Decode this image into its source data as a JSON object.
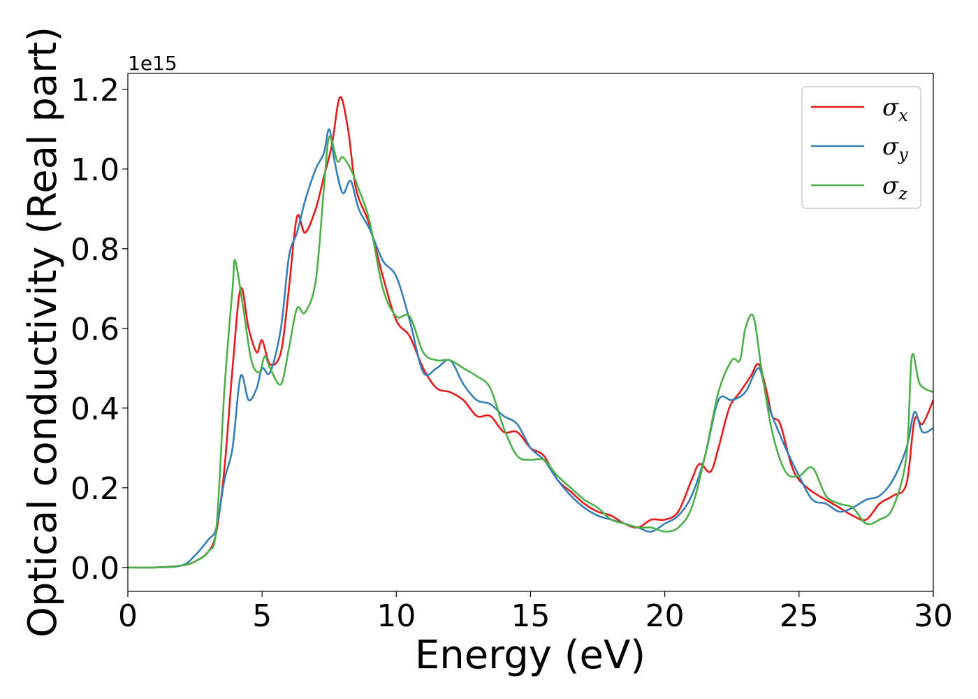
{
  "chart_data": {
    "type": "line",
    "xlabel": "Energy (eV)",
    "ylabel": "Optical conductivity (Real part)",
    "y_offset_label": "1e15",
    "xlim": [
      0,
      30
    ],
    "ylim": [
      -0.06,
      1.24
    ],
    "x_ticks": [
      "0",
      "5",
      "10",
      "15",
      "20",
      "25",
      "30"
    ],
    "y_ticks": [
      "0.0",
      "0.2",
      "0.4",
      "0.6",
      "0.8",
      "1.0",
      "1.2"
    ],
    "grid": false,
    "legend_position": "top-right",
    "series": [
      {
        "name": "σx",
        "symbol": "σ",
        "subscript": "x",
        "color": "#e41a1c",
        "points": [
          [
            0,
            0
          ],
          [
            1,
            0
          ],
          [
            2,
            0.005
          ],
          [
            2.5,
            0.015
          ],
          [
            3,
            0.04
          ],
          [
            3.3,
            0.09
          ],
          [
            3.6,
            0.25
          ],
          [
            3.9,
            0.5
          ],
          [
            4.2,
            0.7
          ],
          [
            4.5,
            0.6
          ],
          [
            4.8,
            0.54
          ],
          [
            5.0,
            0.57
          ],
          [
            5.3,
            0.51
          ],
          [
            5.7,
            0.54
          ],
          [
            6.0,
            0.7
          ],
          [
            6.3,
            0.88
          ],
          [
            6.6,
            0.84
          ],
          [
            7.0,
            0.9
          ],
          [
            7.3,
            0.98
          ],
          [
            7.6,
            1.06
          ],
          [
            7.9,
            1.18
          ],
          [
            8.2,
            1.1
          ],
          [
            8.5,
            0.95
          ],
          [
            9.0,
            0.86
          ],
          [
            9.5,
            0.73
          ],
          [
            10.0,
            0.62
          ],
          [
            10.5,
            0.58
          ],
          [
            11.0,
            0.5
          ],
          [
            11.5,
            0.45
          ],
          [
            12.0,
            0.44
          ],
          [
            12.5,
            0.42
          ],
          [
            13.0,
            0.38
          ],
          [
            13.5,
            0.38
          ],
          [
            14.0,
            0.34
          ],
          [
            14.5,
            0.34
          ],
          [
            15.0,
            0.3
          ],
          [
            15.5,
            0.28
          ],
          [
            16.0,
            0.22
          ],
          [
            16.5,
            0.19
          ],
          [
            17.0,
            0.16
          ],
          [
            17.5,
            0.14
          ],
          [
            18.0,
            0.13
          ],
          [
            18.5,
            0.11
          ],
          [
            19.0,
            0.1
          ],
          [
            19.5,
            0.12
          ],
          [
            20.0,
            0.12
          ],
          [
            20.5,
            0.14
          ],
          [
            21.0,
            0.22
          ],
          [
            21.3,
            0.26
          ],
          [
            21.7,
            0.24
          ],
          [
            22.0,
            0.3
          ],
          [
            22.4,
            0.4
          ],
          [
            22.8,
            0.44
          ],
          [
            23.2,
            0.48
          ],
          [
            23.5,
            0.51
          ],
          [
            23.8,
            0.44
          ],
          [
            24.0,
            0.38
          ],
          [
            24.3,
            0.36
          ],
          [
            24.7,
            0.26
          ],
          [
            25.0,
            0.22
          ],
          [
            25.5,
            0.19
          ],
          [
            26.0,
            0.17
          ],
          [
            26.5,
            0.15
          ],
          [
            27.0,
            0.13
          ],
          [
            27.5,
            0.12
          ],
          [
            28.0,
            0.16
          ],
          [
            28.5,
            0.18
          ],
          [
            29.0,
            0.21
          ],
          [
            29.3,
            0.37
          ],
          [
            29.6,
            0.36
          ],
          [
            30.0,
            0.42
          ]
        ]
      },
      {
        "name": "σy",
        "symbol": "σ",
        "subscript": "y",
        "color": "#377eb8",
        "points": [
          [
            0,
            0
          ],
          [
            1,
            0
          ],
          [
            2,
            0.005
          ],
          [
            2.5,
            0.03
          ],
          [
            3,
            0.07
          ],
          [
            3.3,
            0.1
          ],
          [
            3.6,
            0.22
          ],
          [
            3.9,
            0.3
          ],
          [
            4.2,
            0.48
          ],
          [
            4.5,
            0.42
          ],
          [
            4.8,
            0.45
          ],
          [
            5.0,
            0.5
          ],
          [
            5.3,
            0.49
          ],
          [
            5.7,
            0.6
          ],
          [
            6.0,
            0.78
          ],
          [
            6.3,
            0.84
          ],
          [
            6.6,
            0.92
          ],
          [
            7.0,
            1.0
          ],
          [
            7.3,
            1.04
          ],
          [
            7.5,
            1.1
          ],
          [
            7.7,
            1.02
          ],
          [
            8.0,
            0.94
          ],
          [
            8.3,
            0.97
          ],
          [
            8.6,
            0.9
          ],
          [
            9.0,
            0.85
          ],
          [
            9.5,
            0.77
          ],
          [
            10.0,
            0.73
          ],
          [
            10.5,
            0.62
          ],
          [
            11.0,
            0.49
          ],
          [
            11.5,
            0.5
          ],
          [
            12.0,
            0.52
          ],
          [
            12.5,
            0.46
          ],
          [
            13.0,
            0.42
          ],
          [
            13.5,
            0.41
          ],
          [
            14.0,
            0.38
          ],
          [
            14.5,
            0.36
          ],
          [
            15.0,
            0.3
          ],
          [
            15.5,
            0.27
          ],
          [
            16.0,
            0.22
          ],
          [
            16.5,
            0.18
          ],
          [
            17.0,
            0.15
          ],
          [
            17.5,
            0.13
          ],
          [
            18.0,
            0.12
          ],
          [
            18.5,
            0.11
          ],
          [
            19.0,
            0.1
          ],
          [
            19.5,
            0.09
          ],
          [
            20.0,
            0.11
          ],
          [
            20.5,
            0.13
          ],
          [
            21.0,
            0.18
          ],
          [
            21.5,
            0.28
          ],
          [
            22.0,
            0.42
          ],
          [
            22.5,
            0.42
          ],
          [
            23.0,
            0.44
          ],
          [
            23.5,
            0.5
          ],
          [
            23.8,
            0.42
          ],
          [
            24.0,
            0.38
          ],
          [
            24.5,
            0.3
          ],
          [
            25.0,
            0.23
          ],
          [
            25.5,
            0.17
          ],
          [
            26.0,
            0.16
          ],
          [
            26.5,
            0.14
          ],
          [
            27.0,
            0.15
          ],
          [
            27.5,
            0.17
          ],
          [
            28.0,
            0.18
          ],
          [
            28.5,
            0.22
          ],
          [
            29.0,
            0.3
          ],
          [
            29.3,
            0.39
          ],
          [
            29.6,
            0.34
          ],
          [
            30.0,
            0.35
          ]
        ]
      },
      {
        "name": "σz",
        "symbol": "σ",
        "subscript": "z",
        "color": "#4daf4a",
        "points": [
          [
            0,
            0
          ],
          [
            1,
            0
          ],
          [
            2,
            0.005
          ],
          [
            2.5,
            0.015
          ],
          [
            3,
            0.04
          ],
          [
            3.3,
            0.1
          ],
          [
            3.6,
            0.45
          ],
          [
            3.9,
            0.7
          ],
          [
            4.0,
            0.77
          ],
          [
            4.3,
            0.65
          ],
          [
            4.6,
            0.52
          ],
          [
            4.9,
            0.49
          ],
          [
            5.1,
            0.53
          ],
          [
            5.3,
            0.5
          ],
          [
            5.7,
            0.46
          ],
          [
            6.0,
            0.55
          ],
          [
            6.3,
            0.65
          ],
          [
            6.6,
            0.64
          ],
          [
            7.0,
            0.72
          ],
          [
            7.3,
            0.95
          ],
          [
            7.5,
            1.08
          ],
          [
            7.8,
            1.02
          ],
          [
            8.0,
            1.03
          ],
          [
            8.3,
            1.0
          ],
          [
            8.6,
            0.95
          ],
          [
            9.0,
            0.87
          ],
          [
            9.5,
            0.7
          ],
          [
            10.0,
            0.63
          ],
          [
            10.5,
            0.63
          ],
          [
            11.0,
            0.54
          ],
          [
            11.5,
            0.52
          ],
          [
            12.0,
            0.52
          ],
          [
            12.5,
            0.5
          ],
          [
            13.0,
            0.48
          ],
          [
            13.5,
            0.45
          ],
          [
            14.0,
            0.35
          ],
          [
            14.5,
            0.28
          ],
          [
            15.0,
            0.27
          ],
          [
            15.5,
            0.27
          ],
          [
            16.0,
            0.23
          ],
          [
            16.5,
            0.2
          ],
          [
            17.0,
            0.17
          ],
          [
            17.5,
            0.15
          ],
          [
            18.0,
            0.12
          ],
          [
            18.5,
            0.11
          ],
          [
            19.0,
            0.1
          ],
          [
            19.5,
            0.1
          ],
          [
            20.0,
            0.09
          ],
          [
            20.5,
            0.1
          ],
          [
            21.0,
            0.15
          ],
          [
            21.5,
            0.28
          ],
          [
            22.0,
            0.44
          ],
          [
            22.5,
            0.52
          ],
          [
            22.8,
            0.52
          ],
          [
            23.0,
            0.6
          ],
          [
            23.3,
            0.63
          ],
          [
            23.6,
            0.5
          ],
          [
            24.0,
            0.34
          ],
          [
            24.5,
            0.24
          ],
          [
            25.0,
            0.23
          ],
          [
            25.5,
            0.25
          ],
          [
            26.0,
            0.18
          ],
          [
            26.5,
            0.16
          ],
          [
            27.0,
            0.15
          ],
          [
            27.5,
            0.11
          ],
          [
            28.0,
            0.12
          ],
          [
            28.5,
            0.15
          ],
          [
            29.0,
            0.28
          ],
          [
            29.2,
            0.53
          ],
          [
            29.5,
            0.46
          ],
          [
            30.0,
            0.44
          ]
        ]
      }
    ]
  }
}
